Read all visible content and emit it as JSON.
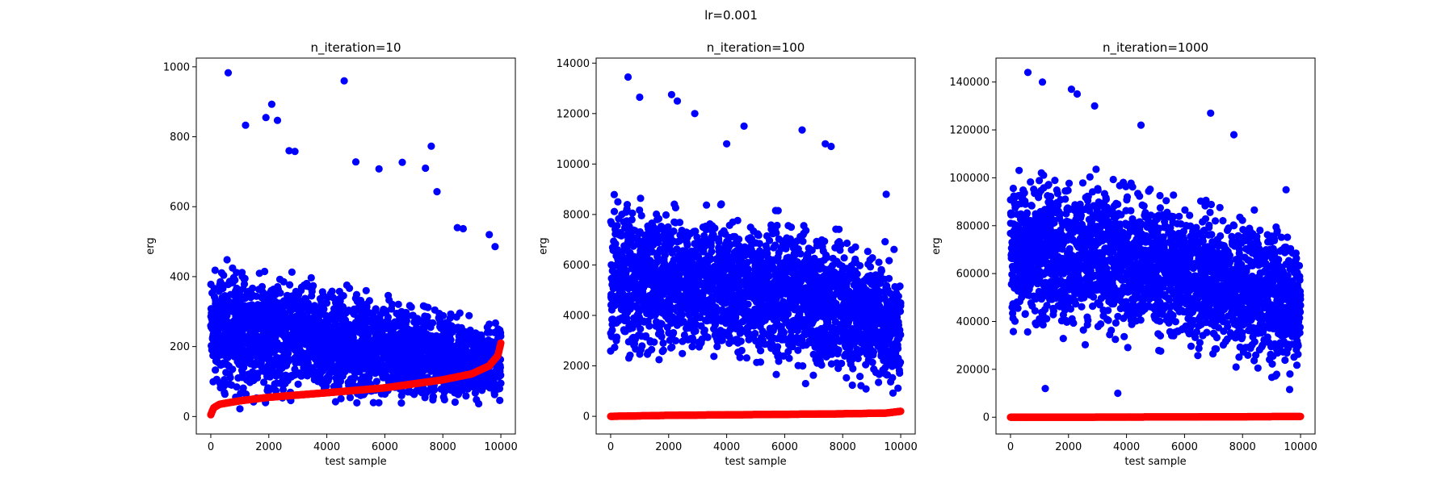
{
  "figure": {
    "suptitle": "lr=0.001"
  },
  "colors": {
    "scatter": "#0000ff",
    "line": "#ff0000",
    "axes": "#000000"
  },
  "chart_data": [
    {
      "type": "scatter",
      "title": "n_iteration=10",
      "xlabel": "test sample",
      "ylabel": "erg",
      "xlim": [
        -500,
        10500
      ],
      "ylim": [
        -50,
        1025
      ],
      "xticks": [
        0,
        2000,
        4000,
        6000,
        8000,
        10000
      ],
      "xtick_labels": [
        "0",
        "2000",
        "4000",
        "6000",
        "8000",
        "10000"
      ],
      "yticks": [
        0,
        200,
        400,
        600,
        800,
        1000
      ],
      "ytick_labels": [
        "0",
        "200",
        "400",
        "600",
        "800",
        "1000"
      ],
      "series": [
        {
          "color": "#0000ff",
          "n_points": 10000,
          "description": "blue scatter, dense band roughly 20-450, decreasing upper envelope toward x=10000",
          "band_low": [
            [
              0,
              10
            ],
            [
              10000,
              10
            ]
          ],
          "band_high": [
            [
              0,
              480
            ],
            [
              3000,
              440
            ],
            [
              6000,
              380
            ],
            [
              9000,
              310
            ],
            [
              10000,
              280
            ]
          ],
          "outliers": [
            [
              600,
              983
            ],
            [
              4600,
              960
            ],
            [
              2100,
              893
            ],
            [
              1900,
              855
            ],
            [
              2300,
              847
            ],
            [
              1200,
              833
            ],
            [
              7600,
              773
            ],
            [
              2700,
              760
            ],
            [
              2900,
              758
            ],
            [
              5000,
              728
            ],
            [
              6600,
              727
            ],
            [
              7400,
              710
            ],
            [
              5800,
              708
            ],
            [
              7800,
              643
            ],
            [
              8500,
              540
            ],
            [
              8700,
              537
            ],
            [
              9600,
              520
            ],
            [
              9800,
              486
            ]
          ]
        },
        {
          "color": "#ff0000",
          "n_points": 10000,
          "description": "red sorted curve rising from ~0 to ~210",
          "curve": [
            [
              0,
              5
            ],
            [
              100,
              25
            ],
            [
              300,
              35
            ],
            [
              1000,
              45
            ],
            [
              2000,
              55
            ],
            [
              4000,
              68
            ],
            [
              6000,
              82
            ],
            [
              8000,
              105
            ],
            [
              9000,
              122
            ],
            [
              9600,
              145
            ],
            [
              9900,
              175
            ],
            [
              10000,
              210
            ]
          ]
        }
      ]
    },
    {
      "type": "scatter",
      "title": "n_iteration=100",
      "xlabel": "test sample",
      "ylabel": "erg",
      "xlim": [
        -500,
        10500
      ],
      "ylim": [
        -700,
        14200
      ],
      "xticks": [
        0,
        2000,
        4000,
        6000,
        8000,
        10000
      ],
      "xtick_labels": [
        "0",
        "2000",
        "4000",
        "6000",
        "8000",
        "10000"
      ],
      "yticks": [
        0,
        2000,
        4000,
        6000,
        8000,
        10000,
        12000,
        14000
      ],
      "ytick_labels": [
        "0",
        "2000",
        "4000",
        "6000",
        "8000",
        "10000",
        "12000",
        "14000"
      ],
      "series": [
        {
          "color": "#0000ff",
          "n_points": 10000,
          "description": "blue scatter, dense band roughly 1500-9500",
          "band_low": [
            [
              0,
              1500
            ],
            [
              4000,
              1500
            ],
            [
              8000,
              800
            ],
            [
              10000,
              200
            ]
          ],
          "band_high": [
            [
              0,
              9500
            ],
            [
              3000,
              9000
            ],
            [
              6000,
              8500
            ],
            [
              9000,
              7500
            ],
            [
              10000,
              6500
            ]
          ],
          "outliers": [
            [
              600,
              13450
            ],
            [
              1000,
              12650
            ],
            [
              2100,
              12750
            ],
            [
              2300,
              12500
            ],
            [
              2900,
              12000
            ],
            [
              4600,
              11500
            ],
            [
              6600,
              11350
            ],
            [
              7400,
              10800
            ],
            [
              7600,
              10700
            ],
            [
              4000,
              10800
            ],
            [
              9500,
              8800
            ]
          ]
        },
        {
          "color": "#ff0000",
          "n_points": 10000,
          "description": "red sorted curve, nearly flat from ~0 to ~200",
          "curve": [
            [
              0,
              0
            ],
            [
              2000,
              40
            ],
            [
              5000,
              70
            ],
            [
              8000,
              100
            ],
            [
              9500,
              130
            ],
            [
              10000,
              200
            ]
          ]
        }
      ]
    },
    {
      "type": "scatter",
      "title": "n_iteration=1000",
      "xlabel": "test sample",
      "ylabel": "erg",
      "xlim": [
        -500,
        10500
      ],
      "ylim": [
        -7000,
        150000
      ],
      "xticks": [
        0,
        2000,
        4000,
        6000,
        8000,
        10000
      ],
      "xtick_labels": [
        "0",
        "2000",
        "4000",
        "6000",
        "8000",
        "10000"
      ],
      "yticks": [
        0,
        20000,
        40000,
        60000,
        80000,
        100000,
        120000,
        140000
      ],
      "ytick_labels": [
        "0",
        "20000",
        "40000",
        "60000",
        "80000",
        "100000",
        "120000",
        "140000"
      ],
      "series": [
        {
          "color": "#0000ff",
          "n_points": 10000,
          "description": "blue scatter, dense band roughly 25000-110000",
          "band_low": [
            [
              0,
              30000
            ],
            [
              4000,
              25000
            ],
            [
              8000,
              15000
            ],
            [
              10000,
              8000
            ]
          ],
          "band_high": [
            [
              0,
              112000
            ],
            [
              3000,
              108000
            ],
            [
              6000,
              100000
            ],
            [
              9000,
              90000
            ],
            [
              10000,
              80000
            ]
          ],
          "outliers": [
            [
              600,
              144000
            ],
            [
              1100,
              140000
            ],
            [
              2100,
              137000
            ],
            [
              2300,
              135000
            ],
            [
              2900,
              130000
            ],
            [
              6900,
              127000
            ],
            [
              4500,
              122000
            ],
            [
              7700,
              118000
            ],
            [
              9500,
              95000
            ],
            [
              3700,
              10000
            ],
            [
              1200,
              12000
            ]
          ]
        },
        {
          "color": "#ff0000",
          "n_points": 10000,
          "description": "red sorted curve, flat near 0",
          "curve": [
            [
              0,
              0
            ],
            [
              5000,
              100
            ],
            [
              10000,
              300
            ]
          ]
        }
      ]
    }
  ]
}
